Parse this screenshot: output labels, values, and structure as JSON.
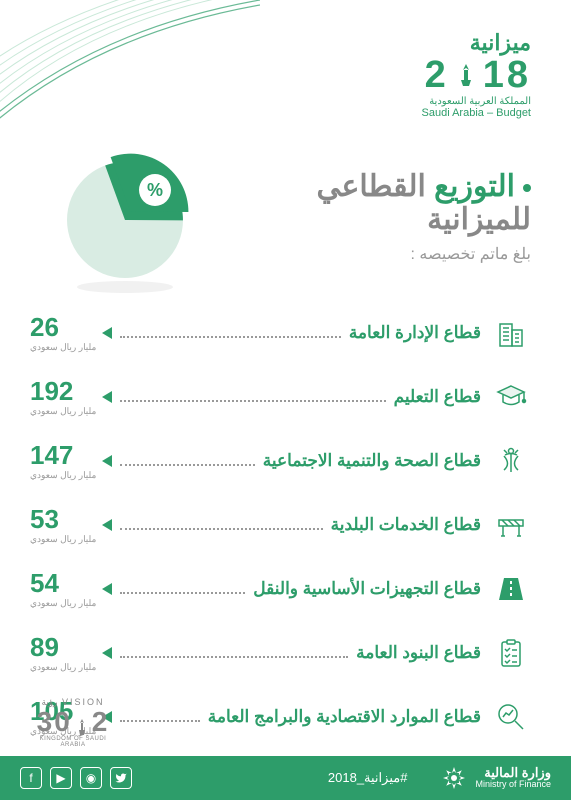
{
  "colors": {
    "primary": "#2d9d6a",
    "gray": "#888888",
    "light_gray": "#999999",
    "pie_light": "#d9ece3",
    "pie_dark": "#5aa17d",
    "background": "#ffffff"
  },
  "header": {
    "brand_ar": "ميزانية",
    "year": "2018",
    "sub_ar": "المملكة العربية السعودية",
    "sub_en": "Saudi Arabia – Budget"
  },
  "pie": {
    "slice1_pct": 70,
    "slice2_pct": 30,
    "percent_symbol": "%"
  },
  "title": {
    "word1": "التوزيع",
    "word2": "القطاعي",
    "line2": "للميزانية",
    "subtitle": "بلغ ماتم تخصيصه :"
  },
  "unit_label": "مليار ريال سعودي",
  "sectors": [
    {
      "label": "قطاع الإدارة العامة",
      "value": 26,
      "icon": "building"
    },
    {
      "label": "قطاع التعليم",
      "value": 192,
      "icon": "graduation"
    },
    {
      "label": "قطاع الصحة والتنمية الاجتماعية",
      "value": 147,
      "icon": "medical"
    },
    {
      "label": "قطاع الخدمات البلدية",
      "value": 53,
      "icon": "barrier"
    },
    {
      "label": "قطاع التجهيزات الأساسية والنقل",
      "value": 54,
      "icon": "road"
    },
    {
      "label": "قطاع البنود العامة",
      "value": 89,
      "icon": "checklist"
    },
    {
      "label": "قطاع الموارد الاقتصادية والبرامج العامة",
      "value": 105,
      "icon": "magnify"
    }
  ],
  "vision": {
    "top_en": "VISION",
    "top_ar": "رؤية",
    "year": "2030",
    "sub": "KINGDOM OF SAUDI ARABIA"
  },
  "footer": {
    "hashtag": "#ميزانية_2018",
    "ministry_ar": "وزارة المالية",
    "ministry_en": "Ministry of Finance",
    "socials": [
      "facebook",
      "youtube",
      "instagram",
      "twitter"
    ]
  }
}
